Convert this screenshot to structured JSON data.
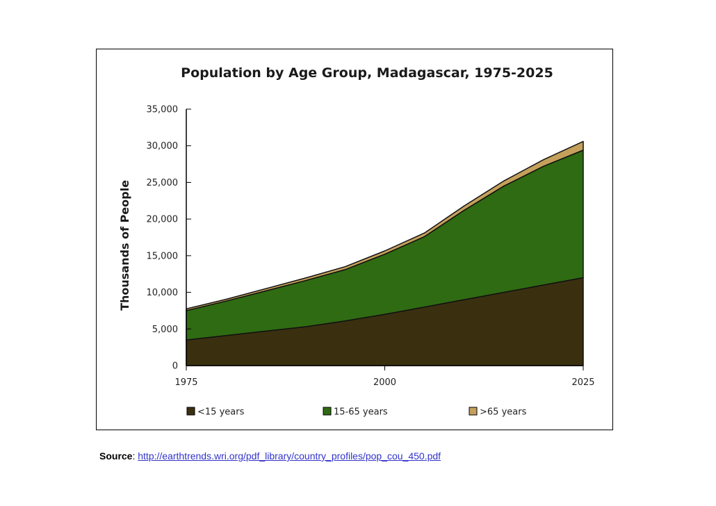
{
  "chart_data": {
    "type": "area",
    "stacked": true,
    "title": "Population by Age Group, Madagascar, 1975-2025",
    "xlabel": "",
    "ylabel": "Thousands of People",
    "x": [
      1975,
      1980,
      1985,
      1990,
      1995,
      2000,
      2005,
      2010,
      2015,
      2020,
      2025
    ],
    "xlim": [
      1975,
      2025
    ],
    "ylim": [
      0,
      35000
    ],
    "x_ticks": [
      1975,
      2000,
      2025
    ],
    "x_tick_labels": [
      "1975",
      "2000",
      "2025"
    ],
    "y_ticks": [
      0,
      5000,
      10000,
      15000,
      20000,
      25000,
      30000,
      35000
    ],
    "y_tick_labels": [
      "0",
      "5,000",
      "10,000",
      "15,000",
      "20,000",
      "25,000",
      "30,000",
      "35,000"
    ],
    "series": [
      {
        "name": "<15 years",
        "color": "#3a3010",
        "values": [
          3500,
          4100,
          4700,
          5300,
          6100,
          7000,
          8000,
          9000,
          10000,
          11000,
          12000
        ]
      },
      {
        "name": "15-65 years",
        "color": "#2f6b12",
        "values": [
          4000,
          4700,
          5500,
          6300,
          7000,
          8200,
          9600,
          12200,
          14500,
          16200,
          17400
        ]
      },
      {
        "name": ">65 years",
        "color": "#c4a05c",
        "values": [
          250,
          250,
          300,
          350,
          400,
          450,
          500,
          600,
          700,
          900,
          1200
        ]
      }
    ],
    "legend_position": "bottom"
  },
  "source": {
    "label": "Source",
    "separator": ": ",
    "url_text": "http://earthtrends.wri.org/pdf_library/country_profiles/pop_cou_450.pdf"
  }
}
